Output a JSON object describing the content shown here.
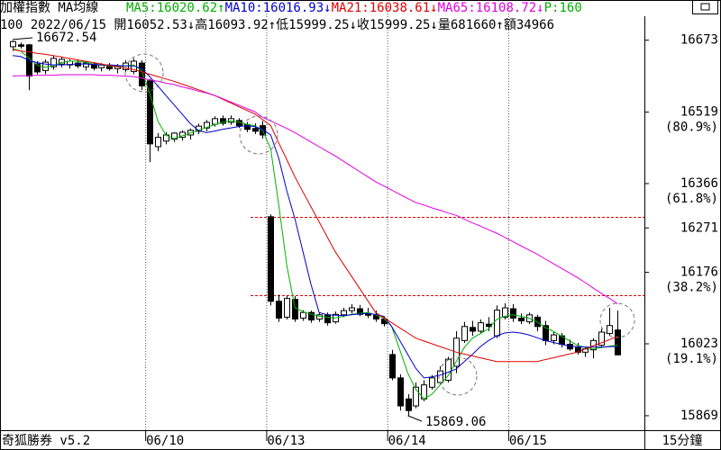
{
  "chart_data": {
    "type": "candlestick",
    "title": "加權指數 MA均線",
    "extra_label": "P:160",
    "extra_color": "#00b000",
    "info_line": "100 2022/06/15 開16052.53↓高16093.92↑低15999.25↓收15999.25↓量681660↑額34966",
    "source": "奇狐勝券 v5.2",
    "interval": "15分鐘",
    "annotations": [
      "16672.54",
      "15869.06"
    ],
    "categories": [
      null,
      null,
      null,
      null,
      null,
      null,
      null,
      null,
      null,
      null,
      null,
      null,
      null,
      null,
      null,
      null,
      null,
      "06/10",
      null,
      null,
      null,
      null,
      null,
      null,
      null,
      null,
      null,
      null,
      null,
      null,
      null,
      null,
      "06/13",
      null,
      null,
      null,
      null,
      null,
      null,
      null,
      null,
      null,
      null,
      null,
      null,
      null,
      null,
      "06/14",
      null,
      null,
      null,
      null,
      null,
      null,
      null,
      null,
      null,
      null,
      null,
      null,
      null,
      null,
      "06/15",
      null,
      null,
      null,
      null,
      null,
      null,
      null,
      null,
      null,
      null,
      null,
      null,
      null
    ],
    "open": [
      16659,
      16663,
      16663,
      16622,
      16608,
      16616,
      16622,
      16620,
      16624,
      16616,
      16622,
      16614,
      16619,
      16612,
      16610,
      16606,
      16624,
      16586,
      16445,
      16457,
      16461,
      16465,
      16470,
      16478,
      16485,
      16493,
      16505,
      16497,
      16501,
      16492,
      16484,
      16490,
      16295,
      16114,
      16080,
      16118,
      16078,
      16090,
      16076,
      16085,
      16070,
      16085,
      16094,
      16098,
      16088,
      16084,
      16076,
      16000,
      15950,
      15905,
      15890,
      15905,
      15930,
      15940,
      15945,
      15975,
      16030,
      16058,
      16050,
      16065,
      16040,
      16080,
      16098,
      16078,
      16070,
      16080,
      16062,
      16030,
      16040,
      16022,
      16015,
      16005,
      16010,
      16020,
      16045,
      16052.53
    ],
    "high": [
      16672.54,
      16668,
      16665,
      16628,
      16632,
      16640,
      16638,
      16632,
      16630,
      16628,
      16626,
      16624,
      16624,
      16622,
      16630,
      16634,
      16630,
      16590,
      16474,
      16476,
      16476,
      16480,
      16484,
      16494,
      16502,
      16510,
      16512,
      16512,
      16506,
      16498,
      16495,
      16500,
      16300,
      16128,
      16126,
      16125,
      16095,
      16094,
      16090,
      16090,
      16092,
      16100,
      16108,
      16106,
      16100,
      16094,
      16082,
      16010,
      15958,
      15915,
      15940,
      15945,
      15956,
      15975,
      15995,
      16050,
      16070,
      16072,
      16075,
      16080,
      16105,
      16110,
      16108,
      16088,
      16090,
      16085,
      16072,
      16048,
      16046,
      16032,
      16025,
      16015,
      16035,
      16055,
      16100,
      16093.92
    ],
    "low": [
      16650,
      16655,
      16566,
      16600,
      16600,
      16610,
      16615,
      16612,
      16613,
      16608,
      16608,
      16606,
      16608,
      16602,
      16605,
      16600,
      16566,
      16412,
      16435,
      16450,
      16455,
      16458,
      16460,
      16472,
      16478,
      16488,
      16490,
      16492,
      16485,
      16476,
      16472,
      16462,
      16105,
      16070,
      16075,
      16070,
      16072,
      16068,
      16070,
      16062,
      16066,
      16080,
      16088,
      16082,
      16078,
      16070,
      16060,
      15945,
      15880,
      15869.06,
      15885,
      15900,
      15925,
      15935,
      15940,
      15960,
      16025,
      16040,
      16045,
      16050,
      16035,
      16075,
      16070,
      16065,
      16065,
      16050,
      16020,
      16022,
      16015,
      16008,
      16000,
      15995,
      15992,
      16015,
      16040,
      15999.25
    ],
    "close": [
      16670,
      16660,
      16596,
      16605,
      16626,
      16634,
      16632,
      16628,
      16618,
      16624,
      16613,
      16620,
      16612,
      16618,
      16624,
      16628,
      16575,
      16451,
      16465,
      16470,
      16474,
      16476,
      16480,
      16489,
      16497,
      16505,
      16495,
      16505,
      16490,
      16482,
      16478,
      16470,
      16114,
      16078,
      16120,
      16076,
      16090,
      16074,
      16085,
      16068,
      16086,
      16094,
      16100,
      16086,
      16084,
      16076,
      16066,
      15950,
      15890,
      15880,
      15930,
      15935,
      15950,
      15965,
      15990,
      16035,
      16060,
      16050,
      16068,
      16060,
      16095,
      16100,
      16078,
      16072,
      16085,
      16060,
      16030,
      16042,
      16022,
      16012,
      16005,
      16012,
      16030,
      16048,
      16062,
      15999.25
    ],
    "series": [
      {
        "name": "MA5",
        "label": "MA5:16020.62↑",
        "color": "#00b000",
        "values": [
          16655,
          16650,
          16635,
          16620,
          16615,
          16618,
          16625,
          16628,
          16628,
          16626,
          16622,
          16620,
          16618,
          16617,
          16618,
          16620,
          16608,
          16560,
          16500,
          16470,
          16462,
          16468,
          16474,
          16480,
          16486,
          16492,
          16497,
          16500,
          16498,
          16493,
          16490,
          16480,
          16440,
          16320,
          16190,
          16100,
          16092,
          16086,
          16082,
          16080,
          16078,
          16082,
          16086,
          16088,
          16090,
          16085,
          16078,
          16060,
          16010,
          15960,
          15925,
          15905,
          15915,
          15935,
          15955,
          15985,
          16015,
          16035,
          16045,
          16055,
          16075,
          16082,
          16085,
          16082,
          16078,
          16070,
          16058,
          16050,
          16040,
          16030,
          16020,
          16015,
          16012,
          16015,
          16018,
          16020.62
        ]
      },
      {
        "name": "MA10",
        "label": "MA10:16016.93↓",
        "color": "#0000d0",
        "values": [
          16640,
          16638,
          16630,
          16625,
          16622,
          16620,
          16620,
          16621,
          16622,
          16622,
          16621,
          16620,
          16620,
          16619,
          16618,
          16618,
          16612,
          16595,
          16575,
          16555,
          16535,
          16515,
          16495,
          16480,
          16475,
          16478,
          16482,
          16485,
          16488,
          16490,
          16488,
          16482,
          16470,
          16420,
          16350,
          16290,
          16220,
          16150,
          16090,
          16085,
          16084,
          16083,
          16085,
          16087,
          16088,
          16086,
          16082,
          16060,
          16030,
          16000,
          15970,
          15950,
          15952,
          15956,
          15962,
          15969,
          15985,
          16000,
          16017,
          16030,
          16040,
          16046,
          16048,
          16046,
          16042,
          16036,
          16030,
          16026,
          16022,
          16018,
          16017,
          16016,
          16016,
          16016,
          16017,
          16016.93
        ]
      },
      {
        "name": "MA21",
        "label": "MA21:16038.61↓",
        "color": "#e00000",
        "values": [
          16653,
          16650,
          16648,
          16645,
          16643,
          16640,
          16637,
          16634,
          16631,
          16628,
          16625,
          16622,
          16619,
          16616,
          16613,
          16610,
          16605,
          16600,
          16595,
          16590,
          16585,
          16579,
          16573,
          16567,
          16561,
          16555,
          16547,
          16539,
          16531,
          16523,
          16515,
          16503,
          16490,
          16453,
          16417,
          16380,
          16348,
          16316,
          16284,
          16252,
          16220,
          16194,
          16168,
          16142,
          16116,
          16090,
          16079,
          16068,
          16057,
          16046,
          16035,
          16029,
          16023,
          16017,
          16011,
          16005,
          16001,
          15997,
          15993,
          15989,
          15985,
          15985,
          15985,
          15985,
          15985,
          15985,
          15989,
          15993,
          15997,
          16001,
          16005,
          16012,
          16019,
          16025,
          16032,
          16038.61
        ]
      },
      {
        "name": "MA65",
        "label": "MA65:16108.72↓",
        "color": "#e000e0",
        "values": [
          16596,
          16597,
          16597,
          16598,
          16598,
          16598,
          16599,
          16599,
          16599,
          16599,
          16599,
          16598,
          16598,
          16597,
          16596,
          16595,
          16592,
          16588,
          16585,
          16581,
          16578,
          16573,
          16569,
          16564,
          16560,
          16555,
          16548,
          16541,
          16534,
          16527,
          16520,
          16508,
          16500,
          16492,
          16484,
          16475,
          16465,
          16455,
          16445,
          16435,
          16425,
          16414,
          16403,
          16392,
          16381,
          16370,
          16361,
          16352,
          16343,
          16334,
          16325,
          16320,
          16314,
          16309,
          16303,
          16298,
          16290,
          16282,
          16275,
          16267,
          16260,
          16251,
          16242,
          16233,
          16224,
          16215,
          16205,
          16195,
          16185,
          16175,
          16165,
          16154,
          16142,
          16131,
          16120,
          16108.72
        ]
      }
    ],
    "ylim": [
      15838,
      16759
    ],
    "yticks": [
      16673,
      16519,
      16366,
      16271,
      16176,
      16023,
      15869
    ],
    "fib_labels": [
      {
        "value": 16519,
        "label": "(80.9%)"
      },
      {
        "value": 16366,
        "label": "(61.8%)"
      },
      {
        "value": 16176,
        "label": "(38.2%)"
      },
      {
        "value": 16023,
        "label": "(19.1%)"
      }
    ],
    "reference_lines": [
      16295,
      16127
    ],
    "reference_color": "#e00000",
    "candle_color": "#000000"
  }
}
